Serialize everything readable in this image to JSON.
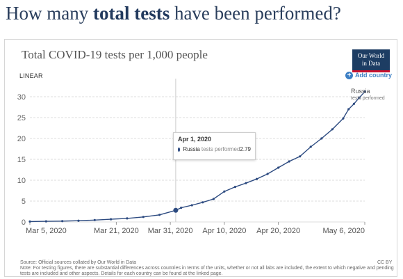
{
  "page": {
    "headline_pre": "How many ",
    "headline_bold": "total tests",
    "headline_post": " have been performed?"
  },
  "logo": {
    "line1": "Our World",
    "line2": "in Data"
  },
  "controls": {
    "scale_label": "LINEAR",
    "add_country": "Add country"
  },
  "tooltip": {
    "date": "Apr 1, 2020",
    "country": "Russia",
    "metric": "tests performed",
    "value": "2.79"
  },
  "footer": {
    "source": "Source: Official sources collated by Our World in Data",
    "note": "Note: For testing figures, there are substantial differences across countries in terms of the units, whether or not all labs are included, the extent to which negative and pending tests are included and other aspects. Details for each country can be found at the linked page.",
    "license": "CC BY"
  },
  "colors": {
    "series": "#2c4a80",
    "grid": "#dddddd",
    "headline": "#2a3e5c",
    "link": "#3c7fc4"
  },
  "chart_data": {
    "type": "line",
    "title": "Total COVID-19 tests per 1,000 people",
    "ylim": [
      0,
      32
    ],
    "yticks": [
      0,
      5,
      10,
      15,
      20,
      25,
      30
    ],
    "xlim": [
      "2020-03-05",
      "2020-05-06"
    ],
    "xticks": [
      {
        "date": "2020-03-05",
        "label": "Mar 5, 2020"
      },
      {
        "date": "2020-03-21",
        "label": "Mar 21, 2020"
      },
      {
        "date": "2020-03-31",
        "label": "Mar 31, 2020"
      },
      {
        "date": "2020-04-10",
        "label": "Apr 10, 2020"
      },
      {
        "date": "2020-04-20",
        "label": "Apr 20, 2020"
      },
      {
        "date": "2020-05-06",
        "label": "May 6, 2020"
      }
    ],
    "grid": true,
    "highlight": {
      "date": "2020-04-01",
      "value": 2.79
    },
    "series": [
      {
        "name": "Russia",
        "label_line2": "tests performed",
        "points": [
          [
            "2020-03-05",
            0.1
          ],
          [
            "2020-03-08",
            0.15
          ],
          [
            "2020-03-11",
            0.2
          ],
          [
            "2020-03-14",
            0.3
          ],
          [
            "2020-03-17",
            0.45
          ],
          [
            "2020-03-20",
            0.65
          ],
          [
            "2020-03-23",
            0.85
          ],
          [
            "2020-03-26",
            1.2
          ],
          [
            "2020-03-29",
            1.7
          ],
          [
            "2020-04-01",
            2.79
          ],
          [
            "2020-04-02",
            3.4
          ],
          [
            "2020-04-04",
            4.0
          ],
          [
            "2020-04-06",
            4.7
          ],
          [
            "2020-04-08",
            5.5
          ],
          [
            "2020-04-10",
            7.3
          ],
          [
            "2020-04-12",
            8.4
          ],
          [
            "2020-04-14",
            9.3
          ],
          [
            "2020-04-16",
            10.3
          ],
          [
            "2020-04-18",
            11.5
          ],
          [
            "2020-04-20",
            13.0
          ],
          [
            "2020-04-22",
            14.5
          ],
          [
            "2020-04-24",
            15.7
          ],
          [
            "2020-04-26",
            18.0
          ],
          [
            "2020-04-28",
            20.0
          ],
          [
            "2020-04-30",
            22.2
          ],
          [
            "2020-05-02",
            24.8
          ],
          [
            "2020-05-03",
            27.0
          ],
          [
            "2020-05-04",
            28.3
          ],
          [
            "2020-05-05",
            29.8
          ],
          [
            "2020-05-06",
            31.2
          ]
        ]
      }
    ]
  }
}
